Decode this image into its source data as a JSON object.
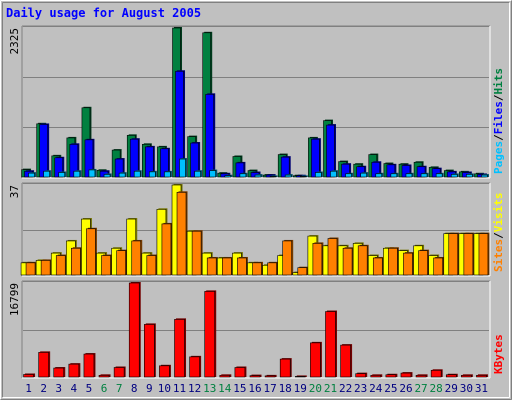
{
  "chart_data": {
    "type": "bar",
    "title": "Daily usage for August 2005",
    "categories": [
      "1",
      "2",
      "3",
      "4",
      "5",
      "6",
      "7",
      "8",
      "9",
      "10",
      "11",
      "12",
      "13",
      "14",
      "15",
      "16",
      "17",
      "18",
      "19",
      "20",
      "21",
      "22",
      "23",
      "24",
      "25",
      "26",
      "27",
      "28",
      "29",
      "30",
      "31"
    ],
    "weekend_days": [
      "6",
      "7",
      "13",
      "14",
      "20",
      "21",
      "27",
      "28"
    ],
    "colors": {
      "hits": "#008040",
      "files": "#0000ff",
      "pages": "#00c0ff",
      "visits": "#ffff00",
      "sites": "#ff8000",
      "kbytes": "#ff0000",
      "title": "#0000ff",
      "weekday_label": "#000080",
      "weekend_label": "#008040",
      "background": "#c0c0c0"
    },
    "panels": [
      {
        "id": "hits-files-pages",
        "ymax_label": "2325",
        "ylim": [
          0,
          2325
        ],
        "legend": [
          "Pages",
          "Files",
          "Hits"
        ],
        "legend_separator": "/",
        "series": [
          {
            "name": "Hits",
            "key": "hits",
            "values": [
              115,
              830,
              330,
              610,
              1080,
              105,
              420,
              650,
              510,
              470,
              2325,
              630,
              2250,
              60,
              320,
              100,
              30,
              350,
              20,
              610,
              880,
              240,
              200,
              350,
              210,
              200,
              230,
              150,
              100,
              80,
              50
            ]
          },
          {
            "name": "Files",
            "key": "files",
            "values": [
              90,
              820,
              300,
              510,
              580,
              90,
              280,
              590,
              470,
              440,
              1650,
              530,
              1290,
              50,
              220,
              70,
              30,
              310,
              20,
              590,
              810,
              200,
              160,
              230,
              190,
              180,
              160,
              130,
              80,
              70,
              40
            ]
          },
          {
            "name": "Pages",
            "key": "pages",
            "values": [
              60,
              90,
              70,
              90,
              110,
              40,
              60,
              90,
              80,
              80,
              280,
              90,
              100,
              20,
              50,
              30,
              10,
              30,
              10,
              70,
              90,
              50,
              60,
              50,
              50,
              50,
              50,
              50,
              40,
              40,
              30
            ]
          }
        ]
      },
      {
        "id": "visits-sites",
        "ymax_label": "37",
        "ylim": [
          0,
          37
        ],
        "legend": [
          "Sites",
          "Visits"
        ],
        "legend_separator": "/",
        "series": [
          {
            "name": "Visits",
            "key": "visits",
            "values": [
              5,
              6,
              9,
              14,
              23,
              9,
              11,
              23,
              9,
              27,
              37,
              18,
              9,
              7,
              9,
              5,
              4,
              8,
              1,
              16,
              12,
              12,
              13,
              8,
              11,
              10,
              12,
              8,
              17,
              17,
              17
            ]
          },
          {
            "name": "Sites",
            "key": "sites",
            "values": [
              5,
              6,
              8,
              11,
              19,
              8,
              10,
              14,
              8,
              21,
              34,
              18,
              7,
              7,
              7,
              5,
              5,
              14,
              3,
              13,
              15,
              11,
              12,
              7,
              11,
              9,
              10,
              7,
              17,
              17,
              17
            ]
          }
        ]
      },
      {
        "id": "kbytes",
        "ymax_label": "16799",
        "ylim": [
          0,
          16799
        ],
        "legend": [
          "KBytes"
        ],
        "legend_separator": "/",
        "series": [
          {
            "name": "KBytes",
            "key": "kbytes",
            "values": [
              450,
              4400,
              1600,
              2300,
              4100,
              300,
              1700,
              16799,
              9400,
              2000,
              10300,
              3600,
              15300,
              300,
              1700,
              250,
              200,
              3200,
              100,
              6100,
              11700,
              5700,
              600,
              300,
              400,
              700,
              300,
              1200,
              400,
              300,
              300
            ]
          }
        ]
      }
    ]
  }
}
